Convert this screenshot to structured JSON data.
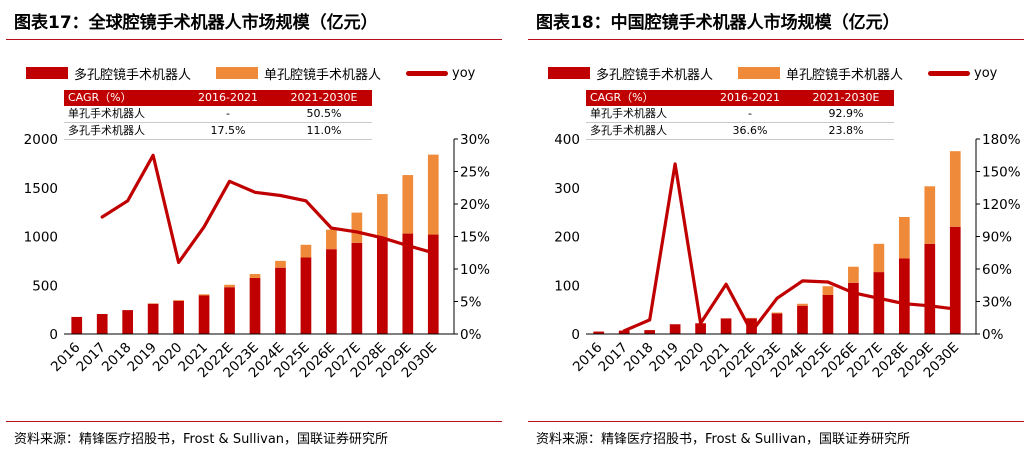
{
  "colors": {
    "multi": "#c00000",
    "single": "#ee8a3a",
    "yoy": "#c00000",
    "accent": "#b5121b"
  },
  "source_text": "资料来源：精锋医疗招股书，Frost & Sullivan，国联证券研究所",
  "chart_data": [
    {
      "type": "bar",
      "stacked": true,
      "title": "图表17：全球腔镜手术机器人市场规模（亿元）",
      "categories": [
        "2016",
        "2017",
        "2018",
        "2019",
        "2020",
        "2021",
        "2022E",
        "2023E",
        "2024E",
        "2025E",
        "2026E",
        "2027E",
        "2028E",
        "2029E",
        "2030E"
      ],
      "series": [
        {
          "name": "多孔腔镜手术机器人",
          "kind": "bar",
          "values": [
            175,
            205,
            245,
            310,
            340,
            395,
            480,
            575,
            680,
            785,
            870,
            935,
            985,
            1030,
            1020
          ]
        },
        {
          "name": "单孔腔镜手术机器人",
          "kind": "bar",
          "values": [
            0,
            0,
            0,
            5,
            8,
            12,
            25,
            40,
            70,
            130,
            200,
            310,
            450,
            600,
            820
          ]
        },
        {
          "name": "yoy",
          "kind": "line",
          "axis": "right",
          "values": [
            null,
            18.0,
            20.5,
            27.5,
            11.0,
            16.5,
            23.5,
            21.8,
            21.3,
            20.5,
            16.3,
            15.7,
            14.8,
            13.6,
            12.5
          ]
        }
      ],
      "yleft": {
        "min": 0,
        "max": 2000,
        "ticks": [
          "0",
          "500",
          "1000",
          "1500",
          "2000"
        ]
      },
      "yright": {
        "min": 0,
        "max": 30,
        "ticks": [
          "0%",
          "5%",
          "10%",
          "15%",
          "20%",
          "25%",
          "30%"
        ]
      },
      "legend": [
        "多孔腔镜手术机器人",
        "单孔腔镜手术机器人",
        "yoy"
      ],
      "cagr_table": {
        "header": [
          "CAGR（%）",
          "2016-2021",
          "2021-2030E"
        ],
        "rows": [
          [
            "单孔手术机器人",
            "-",
            "50.5%"
          ],
          [
            "多孔手术机器人",
            "17.5%",
            "11.0%"
          ]
        ]
      }
    },
    {
      "type": "bar",
      "stacked": true,
      "title": "图表18：中国腔镜手术机器人市场规模（亿元）",
      "categories": [
        "2016",
        "2017",
        "2018",
        "2019",
        "2020",
        "2021",
        "2022E",
        "2023E",
        "2024E",
        "2025E",
        "2026E",
        "2027E",
        "2028E",
        "2029E",
        "2030E"
      ],
      "series": [
        {
          "name": "多孔腔镜手术机器人",
          "kind": "bar",
          "values": [
            5,
            7,
            8,
            20,
            22,
            32,
            32,
            42,
            58,
            80,
            105,
            127,
            155,
            185,
            220
          ]
        },
        {
          "name": "单孔腔镜手术机器人",
          "kind": "bar",
          "values": [
            0,
            0,
            0,
            0,
            0,
            0,
            1,
            2,
            4,
            18,
            33,
            58,
            85,
            118,
            155
          ]
        },
        {
          "name": "yoy",
          "kind": "line",
          "axis": "right",
          "values": [
            null,
            3,
            13,
            157,
            10,
            46,
            2,
            33,
            49,
            48,
            38,
            33,
            28,
            26,
            23
          ]
        }
      ],
      "yleft": {
        "min": 0,
        "max": 400,
        "ticks": [
          "0",
          "100",
          "200",
          "300",
          "400"
        ]
      },
      "yright": {
        "min": 0,
        "max": 180,
        "ticks": [
          "0%",
          "30%",
          "60%",
          "90%",
          "120%",
          "150%",
          "180%"
        ]
      },
      "legend": [
        "多孔腔镜手术机器人",
        "单孔腔镜手术机器人",
        "yoy"
      ],
      "cagr_table": {
        "header": [
          "CAGR（%）",
          "2016-2021",
          "2021-2030E"
        ],
        "rows": [
          [
            "单孔手术机器人",
            "-",
            "92.9%"
          ],
          [
            "多孔手术机器人",
            "36.6%",
            "23.8%"
          ]
        ]
      }
    }
  ]
}
